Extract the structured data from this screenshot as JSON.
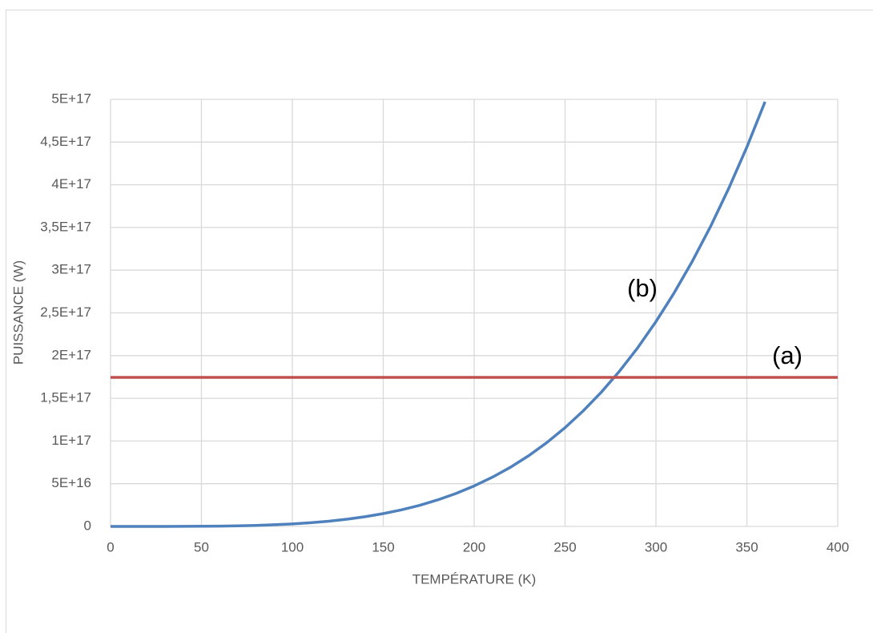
{
  "chart_data": {
    "type": "line",
    "x_label": "TEMPÉRATURE (K)",
    "y_label": "PUISSANCE (W)",
    "annotations": [
      "(b)",
      "(a)"
    ],
    "series": [
      {
        "color": "#4f81bd",
        "x": [
          0,
          10,
          20,
          30,
          40,
          50,
          60,
          70,
          80,
          90,
          100,
          110,
          120,
          130,
          140,
          150,
          160,
          170,
          180,
          190,
          200,
          210,
          220,
          230,
          240,
          250,
          260,
          270,
          280,
          290,
          300,
          310,
          320,
          330,
          340,
          350,
          360
        ],
        "values": [
          0,
          296000000000.0,
          4740000000000.0,
          24000000000000.0,
          75800000000000.0,
          185000000000000.0,
          384000000000000.0,
          711000000000000.0,
          1210000000000000.0,
          1940000000000000.0,
          2960000000000000.0,
          4330000000000000.0,
          6140000000000000.0,
          8450000000000000.0,
          1.14e+16,
          1.5e+16,
          1.94e+16,
          2.47e+16,
          3.11e+16,
          3.86e+16,
          4.74e+16,
          5.76e+16,
          6.93e+16,
          8.28e+16,
          9.82e+16,
          1.156e+17,
          1.353e+17,
          1.573e+17,
          1.819e+17,
          2.093e+17,
          2.398e+17,
          2.734e+17,
          3.104e+17,
          3.51e+17,
          3.956e+17,
          4.441e+17,
          4.972e+17
        ]
      },
      {
        "color": "#c0504d",
        "x": [
          0,
          400
        ],
        "values": [
          1.745e+17,
          1.745e+17
        ]
      }
    ],
    "xlim": [
      0,
      400
    ],
    "xticks": [
      0,
      50,
      100,
      150,
      200,
      250,
      300,
      350,
      400
    ],
    "ylim": [
      0,
      5e+17
    ],
    "yticks": [
      0,
      {
        "value": 5e+16,
        "label": "5E+16"
      },
      {
        "value": 1e+17,
        "label": "1E+17"
      },
      {
        "value": 1.5e+17,
        "label": "1,5E+17"
      },
      {
        "value": 2e+17,
        "label": "2E+17"
      },
      {
        "value": 2.5e+17,
        "label": "2,5E+17"
      },
      {
        "value": 3e+17,
        "label": "3E+17"
      },
      {
        "value": 3.5e+17,
        "label": "3,5E+17"
      },
      {
        "value": 4e+17,
        "label": "4E+17"
      },
      {
        "value": 4.5e+17,
        "label": "4,5E+17"
      },
      {
        "value": 5e+17,
        "label": "5E+17"
      }
    ],
    "grid": true
  }
}
